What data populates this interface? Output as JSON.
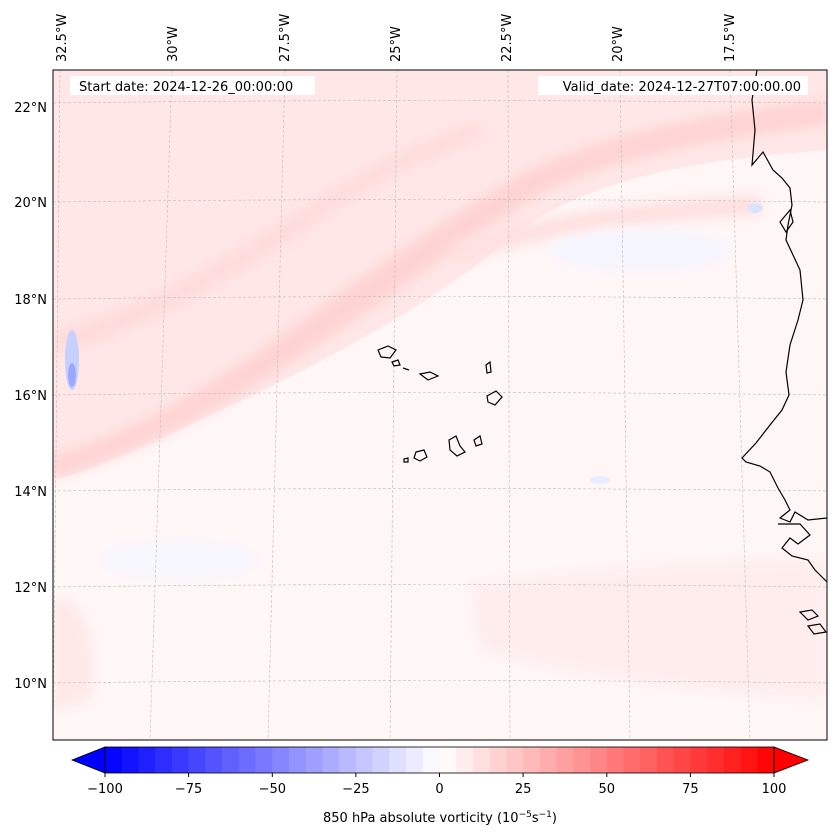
{
  "map": {
    "start_label": "Start date: 2024-12-26_00:00:00",
    "valid_label": "Valid_date: 2024-12-27T07:00:00.00",
    "lon_ticks": [
      "32.5°W",
      "30°W",
      "27.5°W",
      "25°W",
      "22.5°W",
      "20°W",
      "17.5°W"
    ],
    "lat_ticks": [
      "22°N",
      "20°N",
      "18°N",
      "16°N",
      "14°N",
      "12°N",
      "10°N"
    ]
  },
  "colorbar": {
    "ticks": [
      "−100",
      "−75",
      "−50",
      "−25",
      "0",
      "25",
      "50",
      "75",
      "100"
    ],
    "label": "850 hPa absolute vorticity (10",
    "label_exp1": "−5",
    "label_mid": "s",
    "label_exp2": "−1",
    "label_end": ")",
    "min": -100,
    "max": 100,
    "levels": 41
  },
  "colors": {
    "negative": "#0000ff",
    "positive": "#ff0000",
    "coast": "#000000",
    "grid": "#bbbbbb"
  }
}
